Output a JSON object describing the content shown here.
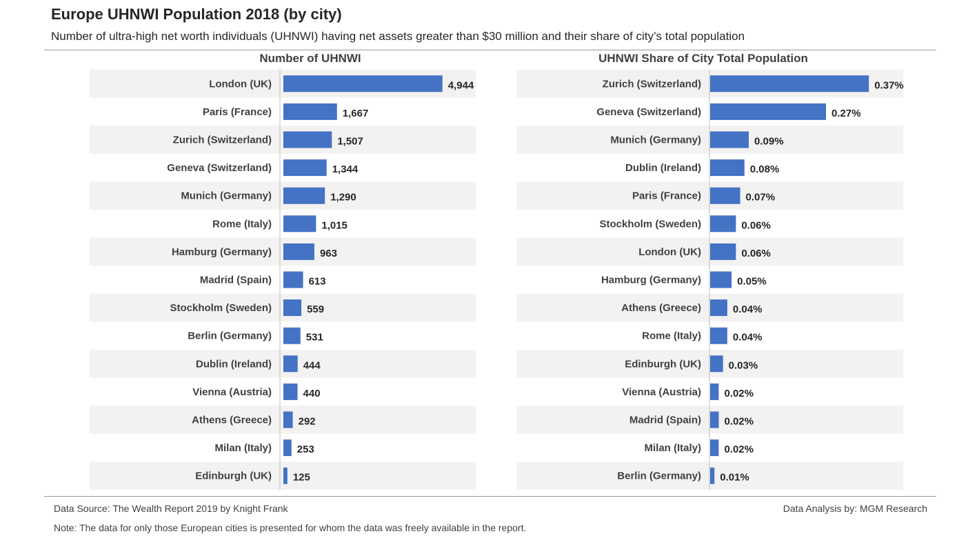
{
  "title": "Europe UHNWI Population 2018 (by city)",
  "subtitle": "Number of ultra-high net worth individuals (UHNWI) having net assets greater than $30 million and their share of city’s total population",
  "footer": {
    "source": "Data Source: The Wealth Report 2019 by Knight Frank",
    "analysis": "Data Analysis by: MGM Research",
    "note": "Note: The data for only those European cities is presented for whom the data was freely available in the report."
  },
  "colors": {
    "bar": "#4472C4",
    "band": "#F2F2F2",
    "axis": "#BFBFBF"
  },
  "chart_data": [
    {
      "type": "bar",
      "orientation": "horizontal",
      "title": "Number of UHNWI",
      "categories": [
        "London (UK)",
        "Paris (France)",
        "Zurich (Switzerland)",
        "Geneva (Switzerland)",
        "Munich (Germany)",
        "Rome (Italy)",
        "Hamburg (Germany)",
        "Madrid (Spain)",
        "Stockholm (Sweden)",
        "Berlin (Germany)",
        "Dublin (Ireland)",
        "Vienna (Austria)",
        "Athens (Greece)",
        "Milan (Italy)",
        "Edinburgh (UK)"
      ],
      "values": [
        4944,
        1667,
        1507,
        1344,
        1290,
        1015,
        963,
        613,
        559,
        531,
        444,
        440,
        292,
        253,
        125
      ],
      "labels": [
        "4,944",
        "1,667",
        "1,507",
        "1,344",
        "1,290",
        "1,015",
        "963",
        "613",
        "559",
        "531",
        "444",
        "440",
        "292",
        "253",
        "125"
      ],
      "xlim": [
        0,
        6000
      ],
      "grid": false,
      "legend": "none"
    },
    {
      "type": "bar",
      "orientation": "horizontal",
      "title": "UHNWI Share of City Total Population",
      "categories": [
        "Zurich (Switzerland)",
        "Geneva (Switzerland)",
        "Munich (Germany)",
        "Dublin (Ireland)",
        "Paris (France)",
        "Stockholm (Sweden)",
        "London (UK)",
        "Hamburg (Germany)",
        "Athens (Greece)",
        "Rome (Italy)",
        "Edinburgh (UK)",
        "Vienna (Austria)",
        "Madrid (Spain)",
        "Milan (Italy)",
        "Berlin (Germany)"
      ],
      "values": [
        0.37,
        0.27,
        0.09,
        0.08,
        0.07,
        0.06,
        0.06,
        0.05,
        0.04,
        0.04,
        0.03,
        0.02,
        0.02,
        0.02,
        0.01
      ],
      "labels": [
        "0.37%",
        "0.27%",
        "0.09%",
        "0.08%",
        "0.07%",
        "0.06%",
        "0.06%",
        "0.05%",
        "0.04%",
        "0.04%",
        "0.03%",
        "0.02%",
        "0.02%",
        "0.02%",
        "0.01%"
      ],
      "xlim": [
        0,
        0.45
      ],
      "grid": false,
      "legend": "none"
    }
  ]
}
